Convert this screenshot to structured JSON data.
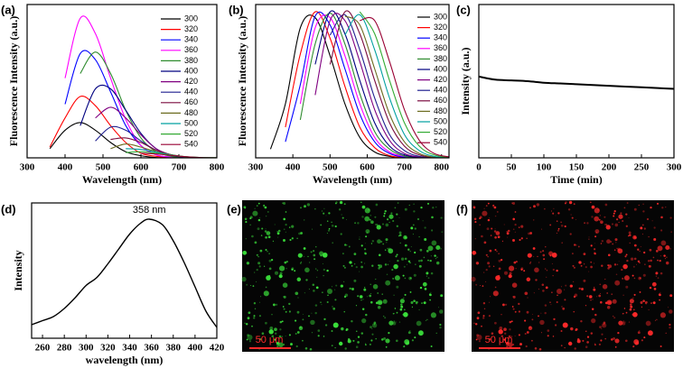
{
  "chart_data": [
    {
      "type": "line",
      "panel_label": "(a)",
      "x_label": "Wavelength (nm)",
      "y_label": "Fluorescence Intensity (a.u.)",
      "xlim": [
        300,
        800
      ],
      "xticks": [
        300,
        400,
        500,
        600,
        700,
        800
      ],
      "ylim": [
        0,
        100
      ],
      "legend": "upper right",
      "x": [
        320,
        360,
        400,
        440,
        480,
        520,
        560,
        600,
        640,
        680,
        720,
        760,
        800
      ],
      "series": [
        {
          "name": "300",
          "color": "#000000",
          "values": [
            null,
            6,
            18,
            23,
            18,
            10,
            4,
            1.4,
            0.2,
            0,
            0,
            0,
            0
          ]
        },
        {
          "name": "320",
          "color": "#ff0000",
          "values": [
            null,
            7,
            26,
            40,
            34,
            21,
            10,
            3,
            1,
            0,
            0,
            0,
            0
          ]
        },
        {
          "name": "340",
          "color": "#0000ff",
          "values": [
            null,
            null,
            35,
            68,
            64,
            43,
            21,
            8,
            2,
            0.5,
            0,
            0,
            0
          ]
        },
        {
          "name": "360",
          "color": "#ff00ff",
          "values": [
            null,
            null,
            52,
            91,
            81,
            52,
            25,
            8,
            2,
            0.5,
            0,
            0,
            0
          ]
        },
        {
          "name": "380",
          "color": "#2e8b2e",
          "values": [
            null,
            null,
            null,
            55,
            69,
            55,
            31,
            13,
            4,
            1,
            0,
            0,
            0
          ]
        },
        {
          "name": "400",
          "color": "#000080",
          "values": [
            null,
            null,
            null,
            21,
            45,
            45,
            31,
            16,
            6,
            1.6,
            0.4,
            0,
            0
          ]
        },
        {
          "name": "420",
          "color": "#800080",
          "values": [
            null,
            null,
            null,
            null,
            26,
            33,
            26,
            15,
            6,
            2,
            0.3,
            0,
            0
          ]
        },
        {
          "name": "440",
          "color": "#1f1f8f",
          "values": [
            null,
            null,
            null,
            null,
            11,
            20,
            18,
            11,
            5,
            2,
            0.4,
            0,
            0
          ]
        },
        {
          "name": "460",
          "color": "#7b0c3f",
          "values": [
            null,
            null,
            null,
            null,
            null,
            12,
            13,
            10,
            5,
            2,
            0.6,
            0.1,
            0
          ]
        },
        {
          "name": "480",
          "color": "#6b6b1f",
          "values": [
            null,
            null,
            null,
            null,
            null,
            6,
            9,
            7,
            4,
            2,
            0.7,
            0.2,
            0
          ]
        },
        {
          "name": "500",
          "color": "#00a0a0",
          "values": [
            null,
            null,
            null,
            null,
            null,
            null,
            6,
            5.5,
            3.7,
            1.8,
            0.6,
            0.2,
            0
          ]
        },
        {
          "name": "520",
          "color": "#33aa33",
          "values": [
            null,
            null,
            null,
            null,
            null,
            null,
            3.4,
            4,
            3,
            1.6,
            0.7,
            0.2,
            0.1
          ]
        },
        {
          "name": "540",
          "color": "#990033",
          "values": [
            null,
            null,
            null,
            null,
            null,
            null,
            null,
            3,
            2.5,
            1.6,
            0.7,
            0.2,
            0.06
          ]
        }
      ]
    },
    {
      "type": "line",
      "panel_label": "(b)",
      "x_label": "Wavelength (nm)",
      "y_label": "Fluorescence Intensity (a.u.)",
      "xlim": [
        300,
        820
      ],
      "xticks": [
        300,
        400,
        500,
        600,
        700,
        800
      ],
      "ylim": [
        0,
        105
      ],
      "legend": "right",
      "x": [
        340,
        380,
        420,
        460,
        500,
        540,
        580,
        620,
        660,
        700,
        740,
        780,
        820
      ],
      "series": [
        {
          "name": "300",
          "color": "#000000",
          "values": [
            6,
            37,
            89,
            96,
            70,
            37,
            14,
            4,
            1,
            0.1,
            0,
            0,
            0
          ]
        },
        {
          "name": "320",
          "color": "#ff0000",
          "values": [
            null,
            21,
            71,
            100,
            82,
            49,
            21,
            7,
            1.5,
            0.2,
            0,
            0,
            0
          ]
        },
        {
          "name": "340",
          "color": "#0000ff",
          "values": [
            null,
            11,
            50,
            97,
            91,
            61,
            30,
            11,
            3,
            0.5,
            0.1,
            0,
            0
          ]
        },
        {
          "name": "360",
          "color": "#ff00ff",
          "values": [
            null,
            null,
            37,
            89,
            96,
            70,
            37,
            14,
            4,
            1,
            0.1,
            0,
            0
          ]
        },
        {
          "name": "380",
          "color": "#2e8b2e",
          "values": [
            null,
            null,
            26,
            78,
            99,
            78,
            44,
            18,
            6,
            1.2,
            0.2,
            0,
            0
          ]
        },
        {
          "name": "400",
          "color": "#000080",
          "values": [
            null,
            null,
            null,
            64,
            100,
            85,
            53,
            24,
            8,
            2,
            0.3,
            0,
            0
          ]
        },
        {
          "name": "420",
          "color": "#800080",
          "values": [
            null,
            null,
            null,
            43,
            94,
            94,
            66,
            33,
            12,
            3,
            0.6,
            0.1,
            0
          ]
        },
        {
          "name": "440",
          "color": "#1f1f8f",
          "values": [
            null,
            null,
            null,
            null,
            84,
            98,
            74,
            41,
            16,
            5,
            1,
            0.2,
            0
          ]
        },
        {
          "name": "460",
          "color": "#7b0c3f",
          "values": [
            null,
            null,
            null,
            null,
            64,
            100,
            85,
            53,
            24,
            8,
            2,
            0.3,
            0
          ]
        },
        {
          "name": "480",
          "color": "#6b6b1f",
          "values": [
            null,
            null,
            null,
            null,
            null,
            97,
            91,
            61,
            30,
            11,
            3,
            0.5,
            0.1
          ]
        },
        {
          "name": "500",
          "color": "#00a0a0",
          "values": [
            null,
            null,
            null,
            null,
            null,
            84,
            98,
            74,
            41,
            16,
            5,
            1,
            0.2
          ]
        },
        {
          "name": "520",
          "color": "#33aa33",
          "values": [
            null,
            null,
            null,
            null,
            null,
            null,
            100,
            85,
            53,
            24,
            8,
            2,
            0.3
          ]
        },
        {
          "name": "540",
          "color": "#990033",
          "values": [
            null,
            null,
            null,
            null,
            null,
            null,
            94,
            94,
            66,
            33,
            12,
            3,
            0.7
          ]
        }
      ]
    },
    {
      "type": "line",
      "panel_label": "(c)",
      "x_label": "Time (min)",
      "y_label": "Intensity (a.u.)",
      "xlim": [
        0,
        300
      ],
      "xticks": [
        0,
        50,
        100,
        150,
        200,
        250,
        300
      ],
      "ylim": [
        0,
        1
      ],
      "color": "#000000",
      "x": [
        0,
        25,
        50,
        75,
        100,
        125,
        150,
        175,
        200,
        225,
        250,
        275,
        300
      ],
      "values": [
        0.53,
        0.51,
        0.505,
        0.5,
        0.49,
        0.485,
        0.48,
        0.475,
        0.47,
        0.465,
        0.46,
        0.455,
        0.45
      ]
    },
    {
      "type": "line",
      "panel_label": "(d)",
      "x_label": "wavelength (nm)",
      "y_label": "Intensity",
      "annotation": "358 nm",
      "xlim": [
        250,
        420
      ],
      "xticks": [
        260,
        280,
        300,
        320,
        340,
        360,
        380,
        400,
        420
      ],
      "ylim": [
        0,
        1
      ],
      "color": "#000000",
      "x": [
        250,
        260,
        270,
        280,
        290,
        300,
        310,
        320,
        330,
        340,
        350,
        358,
        370,
        380,
        390,
        400,
        410,
        420
      ],
      "values": [
        0.1,
        0.13,
        0.16,
        0.22,
        0.3,
        0.39,
        0.45,
        0.55,
        0.66,
        0.77,
        0.85,
        0.88,
        0.84,
        0.72,
        0.56,
        0.38,
        0.2,
        0.08
      ]
    }
  ],
  "images": [
    {
      "panel_label": "(e)",
      "scale_bar": "50 μm"
    },
    {
      "panel_label": "(f)",
      "scale_bar": "50 μm"
    }
  ]
}
